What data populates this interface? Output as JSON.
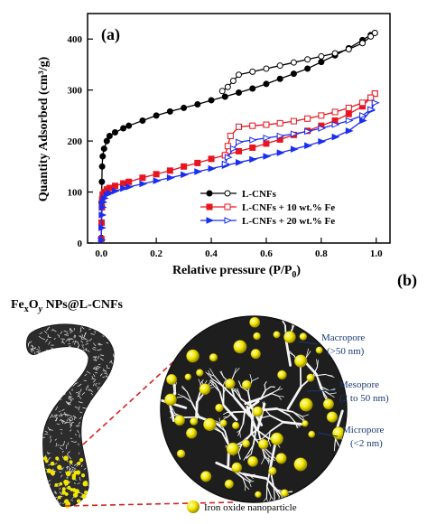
{
  "panel_a_label": "(a)",
  "panel_b_label": "(b)",
  "chart_data": {
    "type": "line",
    "title": "",
    "xlabel_main": "Relative pressure (P/P",
    "xlabel_sub": "0",
    "xlabel_end": ")",
    "ylabel": "Quantity Adsorbed (cm³/g)",
    "xlim": [
      -0.05,
      1.05
    ],
    "ylim": [
      0,
      450
    ],
    "xticks": [
      0.0,
      0.2,
      0.4,
      0.6,
      0.8,
      1.0
    ],
    "xtick_labels": [
      "0.0",
      "0.2",
      "0.4",
      "0.6",
      "0.8",
      "1.0"
    ],
    "yticks": [
      0,
      100,
      200,
      300,
      400
    ],
    "ytick_labels": [
      "0",
      "100",
      "200",
      "300",
      "400"
    ],
    "grid": false,
    "legend_position": "lower-right",
    "series": [
      {
        "name": "L-CNFs",
        "color": "#000000",
        "marker": "circle",
        "adsorption": [
          [
            0.0,
            10
          ],
          [
            0.001,
            80
          ],
          [
            0.002,
            120
          ],
          [
            0.003,
            150
          ],
          [
            0.005,
            170
          ],
          [
            0.01,
            185
          ],
          [
            0.02,
            200
          ],
          [
            0.03,
            210
          ],
          [
            0.05,
            217
          ],
          [
            0.08,
            225
          ],
          [
            0.1,
            230
          ],
          [
            0.15,
            240
          ],
          [
            0.2,
            250
          ],
          [
            0.25,
            258
          ],
          [
            0.3,
            265
          ],
          [
            0.35,
            272
          ],
          [
            0.4,
            280
          ],
          [
            0.45,
            287
          ],
          [
            0.5,
            295
          ],
          [
            0.55,
            303
          ],
          [
            0.6,
            312
          ],
          [
            0.65,
            322
          ],
          [
            0.7,
            332
          ],
          [
            0.75,
            342
          ],
          [
            0.8,
            355
          ],
          [
            0.85,
            368
          ],
          [
            0.9,
            382
          ],
          [
            0.95,
            398
          ],
          [
            0.98,
            408
          ],
          [
            0.995,
            412
          ]
        ],
        "desorption": [
          [
            0.995,
            412
          ],
          [
            0.98,
            405
          ],
          [
            0.95,
            392
          ],
          [
            0.9,
            380
          ],
          [
            0.85,
            372
          ],
          [
            0.8,
            366
          ],
          [
            0.75,
            360
          ],
          [
            0.7,
            354
          ],
          [
            0.65,
            348
          ],
          [
            0.6,
            342
          ],
          [
            0.55,
            336
          ],
          [
            0.5,
            330
          ],
          [
            0.48,
            318
          ],
          [
            0.46,
            306
          ],
          [
            0.44,
            298
          ]
        ]
      },
      {
        "name": "L-CNFs + 10 wt.% Fe",
        "color": "#e8141e",
        "marker": "square",
        "adsorption": [
          [
            0.0,
            8
          ],
          [
            0.001,
            40
          ],
          [
            0.002,
            70
          ],
          [
            0.003,
            85
          ],
          [
            0.005,
            95
          ],
          [
            0.01,
            100
          ],
          [
            0.02,
            105
          ],
          [
            0.03,
            108
          ],
          [
            0.05,
            112
          ],
          [
            0.08,
            117
          ],
          [
            0.1,
            120
          ],
          [
            0.15,
            128
          ],
          [
            0.2,
            135
          ],
          [
            0.25,
            142
          ],
          [
            0.3,
            150
          ],
          [
            0.35,
            157
          ],
          [
            0.4,
            165
          ],
          [
            0.45,
            172
          ],
          [
            0.5,
            180
          ],
          [
            0.55,
            187
          ],
          [
            0.6,
            195
          ],
          [
            0.65,
            203
          ],
          [
            0.7,
            212
          ],
          [
            0.75,
            220
          ],
          [
            0.8,
            230
          ],
          [
            0.85,
            240
          ],
          [
            0.9,
            253
          ],
          [
            0.95,
            268
          ],
          [
            0.98,
            285
          ],
          [
            0.995,
            293
          ]
        ],
        "desorption": [
          [
            0.995,
            293
          ],
          [
            0.98,
            285
          ],
          [
            0.95,
            275
          ],
          [
            0.9,
            265
          ],
          [
            0.85,
            257
          ],
          [
            0.8,
            250
          ],
          [
            0.75,
            244
          ],
          [
            0.7,
            239
          ],
          [
            0.65,
            235
          ],
          [
            0.6,
            232
          ],
          [
            0.55,
            230
          ],
          [
            0.5,
            228
          ],
          [
            0.47,
            210
          ],
          [
            0.46,
            190
          ],
          [
            0.45,
            172
          ]
        ]
      },
      {
        "name": "L-CNFs + 20 wt.% Fe",
        "color": "#1b2ef0",
        "marker": "triangle-right",
        "adsorption": [
          [
            0.0,
            6
          ],
          [
            0.001,
            30
          ],
          [
            0.002,
            55
          ],
          [
            0.003,
            70
          ],
          [
            0.005,
            80
          ],
          [
            0.01,
            88
          ],
          [
            0.02,
            95
          ],
          [
            0.03,
            98
          ],
          [
            0.05,
            102
          ],
          [
            0.08,
            107
          ],
          [
            0.1,
            110
          ],
          [
            0.15,
            116
          ],
          [
            0.2,
            122
          ],
          [
            0.25,
            128
          ],
          [
            0.3,
            134
          ],
          [
            0.35,
            140
          ],
          [
            0.4,
            146
          ],
          [
            0.45,
            152
          ],
          [
            0.5,
            158
          ],
          [
            0.55,
            164
          ],
          [
            0.6,
            170
          ],
          [
            0.65,
            177
          ],
          [
            0.7,
            184
          ],
          [
            0.75,
            191
          ],
          [
            0.8,
            199
          ],
          [
            0.85,
            208
          ],
          [
            0.9,
            220
          ],
          [
            0.95,
            240
          ],
          [
            0.98,
            260
          ],
          [
            0.995,
            275
          ]
        ],
        "desorption": [
          [
            0.995,
            275
          ],
          [
            0.98,
            262
          ],
          [
            0.95,
            250
          ],
          [
            0.9,
            240
          ],
          [
            0.85,
            232
          ],
          [
            0.8,
            225
          ],
          [
            0.75,
            219
          ],
          [
            0.7,
            214
          ],
          [
            0.65,
            210
          ],
          [
            0.6,
            206
          ],
          [
            0.55,
            202
          ],
          [
            0.5,
            198
          ],
          [
            0.48,
            185
          ],
          [
            0.46,
            168
          ],
          [
            0.45,
            155
          ]
        ]
      }
    ]
  },
  "schematic": {
    "title_main": "Fe",
    "title_sub_x": "x",
    "title_mid": "O",
    "title_sub_y": "y",
    "title_end": " NPs@L-CNFs",
    "macropore_label": "Macropore",
    "macropore_size": "(>50 nm)",
    "mesopore_label": "Mesopore",
    "mesopore_size": "(2 to 50 nm)",
    "micropore_label": "Micropore",
    "micropore_size": "(<2 nm)",
    "nanoparticle_caption": "Iron oxide nanoparticle",
    "fiber_color": "#2a2a2a",
    "particle_color": "#f2e600",
    "connector_color": "#d9231f"
  }
}
